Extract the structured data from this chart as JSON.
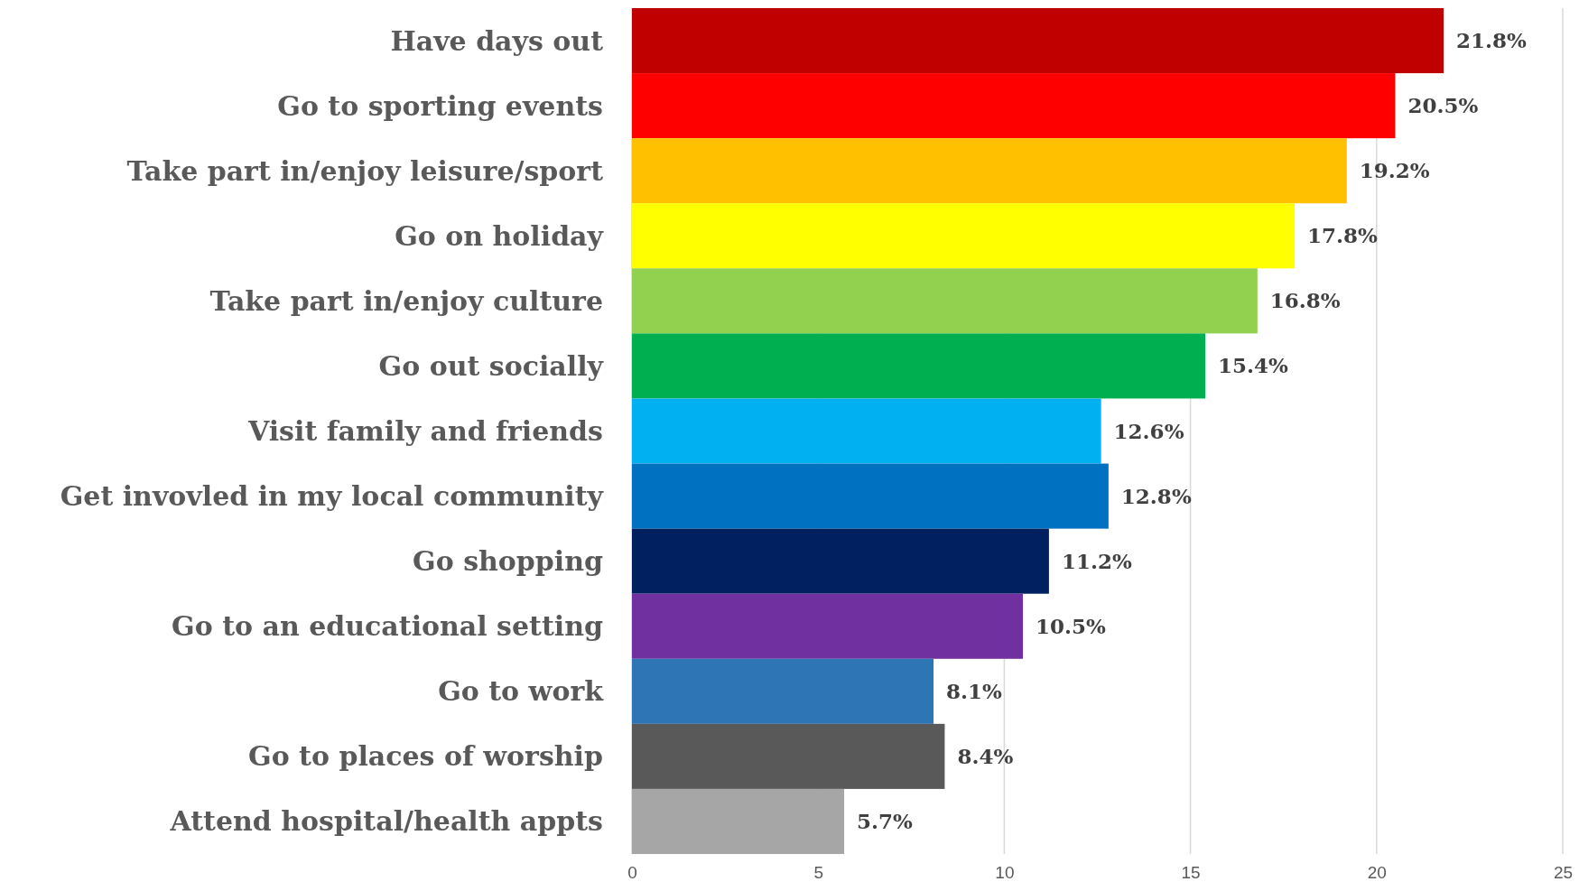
{
  "chart_data": {
    "type": "bar",
    "orientation": "horizontal",
    "categories": [
      "Have days out",
      "Go to sporting events",
      "Take part in/enjoy leisure/sport",
      "Go on holiday",
      "Take part in/enjoy culture",
      "Go out socially",
      "Visit family and friends",
      "Get invovled in my local community",
      "Go shopping",
      "Go to an educational setting",
      "Go to work",
      "Go to places of worship",
      "Attend hospital/health appts"
    ],
    "values": [
      21.8,
      20.5,
      19.2,
      17.8,
      16.8,
      15.4,
      12.6,
      12.8,
      11.2,
      10.5,
      8.1,
      8.4,
      5.7
    ],
    "value_labels": [
      "21.8%",
      "20.5%",
      "19.2%",
      "17.8%",
      "16.8%",
      "15.4%",
      "12.6%",
      "12.8%",
      "11.2%",
      "10.5%",
      "8.1%",
      "8.4%",
      "5.7%"
    ],
    "colors": [
      "#c00000",
      "#ff0000",
      "#ffc000",
      "#ffff00",
      "#92d050",
      "#00b050",
      "#00b0f0",
      "#0070c0",
      "#002060",
      "#7030a0",
      "#2e75b6",
      "#595959",
      "#a6a6a6"
    ],
    "xlim": [
      0,
      25
    ],
    "xticks": [
      0,
      5,
      10,
      15,
      20,
      25
    ],
    "grid": "x"
  }
}
